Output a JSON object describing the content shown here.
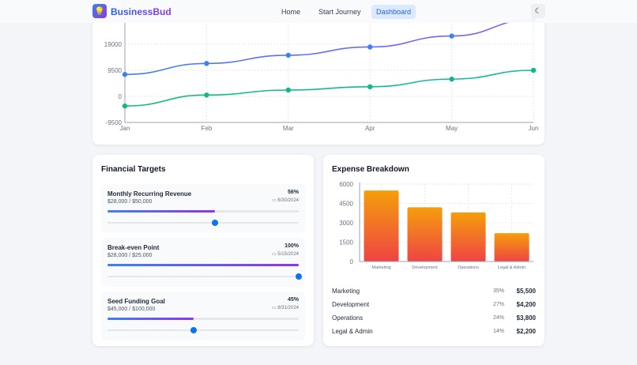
{
  "header": {
    "brand": "BusinessBud",
    "nav": [
      "Home",
      "Start Journey",
      "Dashboard"
    ],
    "active": "Dashboard",
    "icons": {
      "logo": "lightbulb-icon",
      "theme": "moon-icon"
    }
  },
  "line_chart": {
    "chart_data": {
      "type": "line",
      "categories": [
        "Jan",
        "Feb",
        "Mar",
        "Apr",
        "May",
        "Jun"
      ],
      "yticks": [
        -9500,
        0,
        9500,
        19000
      ],
      "ylim": [
        -9500,
        28500
      ],
      "grid": true,
      "series": [
        {
          "color": "#3b82f6",
          "values": [
            8000,
            12000,
            15000,
            18000,
            22000,
            28000
          ]
        },
        {
          "color": "#10b981",
          "values": [
            -3500,
            500,
            2300,
            3500,
            6300,
            9500
          ]
        }
      ]
    }
  },
  "targets": {
    "title": "Financial Targets",
    "items": [
      {
        "name": "Monthly Recurring Revenue",
        "amount": "$28,000 / $50,000",
        "percent": "56%",
        "date": "6/30/2024",
        "progress": 56,
        "slider": 56
      },
      {
        "name": "Break-even Point",
        "amount": "$28,000 / $25,000",
        "percent": "100%",
        "date": "5/15/2024",
        "progress": 100,
        "slider": 100
      },
      {
        "name": "Seed Funding Goal",
        "amount": "$45,000 / $100,000",
        "percent": "45%",
        "date": "8/31/2024",
        "progress": 45,
        "slider": 45
      }
    ]
  },
  "expenses": {
    "title": "Expense Breakdown",
    "chart_data": {
      "type": "bar",
      "categories": [
        "Marketing",
        "Development",
        "Operations",
        "Legal & Admin"
      ],
      "values": [
        5500,
        4200,
        3800,
        2200
      ],
      "yticks": [
        0,
        1500,
        3000,
        4500,
        6000
      ],
      "ylim": [
        0,
        6000
      ],
      "grid": true,
      "colors": [
        "#f59e0b",
        "#ef4444"
      ]
    },
    "rows": [
      {
        "label": "Marketing",
        "percent": "35%",
        "value": "$5,500"
      },
      {
        "label": "Development",
        "percent": "27%",
        "value": "$4,200"
      },
      {
        "label": "Operations",
        "percent": "24%",
        "value": "$3,800"
      },
      {
        "label": "Legal & Admin",
        "percent": "14%",
        "value": "$2,200"
      }
    ]
  }
}
